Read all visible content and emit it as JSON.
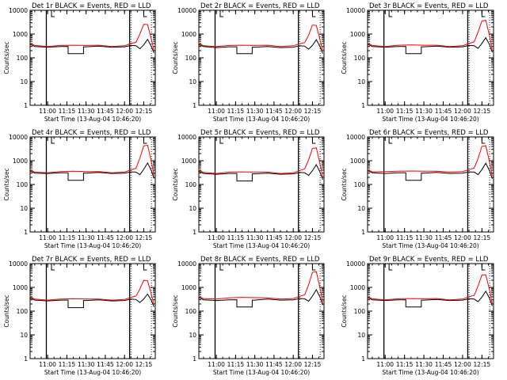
{
  "chart_data": {
    "type": "line",
    "layout": "3x3 grid",
    "y_scale": "log",
    "ylim": [
      1,
      10000
    ],
    "ylabel": "Counts/sec",
    "xlabel": "Start Time (13-Aug-04 10:46:20)",
    "x_range": [
      "10:46:20",
      "12:24:00"
    ],
    "x_ticks": [
      "11:00",
      "11:15",
      "11:30",
      "11:45",
      "12:00",
      "12:15"
    ],
    "y_ticks": [
      "1",
      "10",
      "100",
      "1000",
      "10000"
    ],
    "x_sample_times": [
      "10:46",
      "10:50",
      "11:00",
      "11:10",
      "11:20",
      "11:30",
      "11:40",
      "11:50",
      "12:00",
      "12:05",
      "12:09",
      "12:12",
      "12:15",
      "12:18",
      "12:21",
      "12:23"
    ],
    "gap_interval": [
      "11:16",
      "11:28"
    ],
    "markers": {
      "solid": [
        "10:59",
        "12:04"
      ],
      "dotted": [
        "12:05",
        "12:21"
      ],
      "tick_marks": [
        "11:03",
        "12:15"
      ]
    },
    "series_legend": {
      "events_color": "BLACK",
      "events_label": "Events",
      "lld_color": "RED",
      "lld_label": "LLD"
    },
    "colors": {
      "events": "#000000",
      "lld": "#ff0000"
    },
    "panels": [
      {
        "title": "Det 1r  BLACK = Events, RED = LLD",
        "events": [
          380,
          300,
          280,
          300,
          150,
          290,
          310,
          280,
          290,
          330,
          320,
          240,
          350,
          600,
          300,
          160
        ],
        "lld": [
          420,
          330,
          300,
          330,
          340,
          330,
          340,
          300,
          320,
          400,
          450,
          1000,
          2600,
          2500,
          600,
          200
        ]
      },
      {
        "title": "Det 2r  BLACK = Events, RED = LLD",
        "events": [
          370,
          300,
          270,
          290,
          150,
          280,
          300,
          270,
          280,
          320,
          310,
          230,
          330,
          580,
          290,
          150
        ],
        "lld": [
          410,
          320,
          300,
          330,
          340,
          330,
          340,
          300,
          320,
          390,
          440,
          900,
          2400,
          2300,
          550,
          200
        ]
      },
      {
        "title": "Det 3r  BLACK = Events, RED = LLD",
        "events": [
          380,
          300,
          280,
          300,
          150,
          290,
          310,
          280,
          290,
          330,
          320,
          250,
          400,
          700,
          350,
          170
        ],
        "lld": [
          420,
          330,
          300,
          340,
          350,
          340,
          340,
          300,
          320,
          400,
          470,
          1200,
          3500,
          3800,
          800,
          220
        ]
      },
      {
        "title": "Det 4r  BLACK = Events, RED = LLD",
        "events": [
          380,
          300,
          290,
          310,
          150,
          300,
          320,
          290,
          300,
          340,
          330,
          260,
          430,
          800,
          380,
          180
        ],
        "lld": [
          420,
          330,
          310,
          350,
          360,
          350,
          350,
          310,
          330,
          410,
          480,
          1300,
          4200,
          4500,
          900,
          230
        ]
      },
      {
        "title": "Det 5r  BLACK = Events, RED = LLD",
        "events": [
          370,
          290,
          270,
          290,
          140,
          280,
          300,
          270,
          280,
          320,
          310,
          240,
          380,
          680,
          320,
          160
        ],
        "lld": [
          410,
          320,
          290,
          330,
          340,
          330,
          330,
          290,
          310,
          390,
          450,
          1100,
          3300,
          3500,
          700,
          210
        ]
      },
      {
        "title": "Det 6r  BLACK = Events, RED = LLD",
        "events": [
          390,
          310,
          290,
          310,
          150,
          300,
          320,
          290,
          300,
          340,
          330,
          260,
          420,
          780,
          370,
          175
        ],
        "lld": [
          430,
          340,
          350,
          360,
          370,
          360,
          360,
          330,
          350,
          420,
          490,
          1250,
          4000,
          4300,
          850,
          230
        ]
      },
      {
        "title": "Det 7r  BLACK = Events, RED = LLD",
        "events": [
          370,
          290,
          270,
          290,
          140,
          280,
          300,
          270,
          280,
          320,
          310,
          230,
          320,
          520,
          280,
          150
        ],
        "lld": [
          410,
          320,
          290,
          320,
          330,
          320,
          320,
          290,
          310,
          380,
          430,
          850,
          2000,
          1900,
          500,
          190
        ]
      },
      {
        "title": "Det 8r  BLACK = Events, RED = LLD",
        "events": [
          390,
          300,
          280,
          300,
          150,
          290,
          320,
          290,
          300,
          340,
          330,
          260,
          430,
          800,
          380,
          180
        ],
        "lld": [
          420,
          340,
          320,
          360,
          380,
          370,
          360,
          320,
          340,
          420,
          490,
          1300,
          4300,
          4600,
          900,
          230
        ]
      },
      {
        "title": "Det 9r  BLACK = Events, RED = LLD",
        "events": [
          380,
          300,
          280,
          300,
          150,
          290,
          310,
          280,
          290,
          330,
          320,
          250,
          390,
          690,
          340,
          165
        ],
        "lld": [
          420,
          330,
          300,
          330,
          340,
          330,
          340,
          300,
          320,
          400,
          460,
          1150,
          3300,
          3400,
          750,
          210
        ]
      }
    ]
  }
}
